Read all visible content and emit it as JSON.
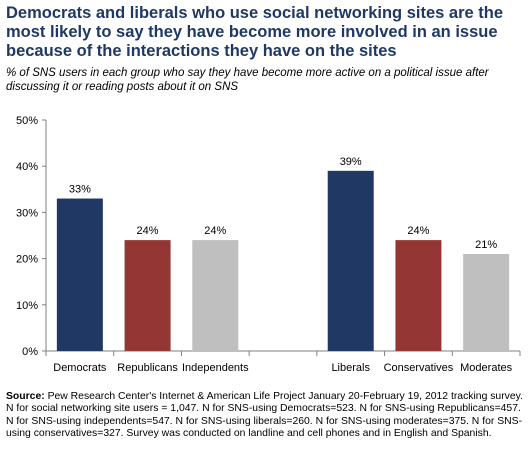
{
  "title": "Democrats and liberals who use social networking sites are the most likely to say they have become more involved in an issue because of the interactions they have on the sites",
  "subtitle": "% of SNS users in each group who say they have become more active on a political issue after discussing it or reading posts about it on SNS",
  "source_label": "Source:",
  "source_text": "Pew Research Center's Internet & American Life Project January 20-February 19, 2012 tracking survey. N for social networking site users = 1,047. N for SNS-using Democrats=523. N for SNS-using Republicans=457. N for SNS-using independents=547. N for SNS-using liberals=260. N for SNS-using moderates=375. N for SNS-using conservatives=327. Survey was conducted on landline and cell phones and in English and Spanish.",
  "chart_data": {
    "type": "bar",
    "title": "",
    "xlabel": "",
    "ylabel": "",
    "ylim": [
      0,
      50
    ],
    "yticks": [
      "0%",
      "10%",
      "20%",
      "30%",
      "40%",
      "50%"
    ],
    "grid": false,
    "legend": "none",
    "groups": [
      {
        "categories": [
          "Democrats",
          "Republicans",
          "Independents"
        ],
        "values": [
          33,
          24,
          24
        ],
        "labels": [
          "33%",
          "24%",
          "24%"
        ],
        "colors": [
          "#1f3864",
          "#943634",
          "#bfbfbf"
        ]
      },
      {
        "categories": [
          "Liberals",
          "Conservatives",
          "Moderates"
        ],
        "values": [
          39,
          24,
          21
        ],
        "labels": [
          "39%",
          "24%",
          "21%"
        ],
        "colors": [
          "#1f3864",
          "#943634",
          "#bfbfbf"
        ]
      }
    ]
  }
}
